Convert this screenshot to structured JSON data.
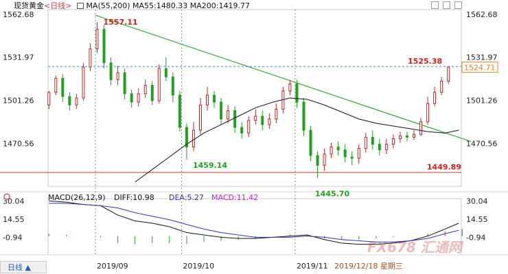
{
  "header": {
    "instrument": "现货黄金",
    "period_tag": "<日线>",
    "ma_label": "MA(55,200)",
    "ma55": "MA55:1480.33",
    "ma200": "MA200:1419.77"
  },
  "macd_header": {
    "label": "MACD(26,12,9)",
    "diff": "DIFF:10.98",
    "dea": "DEA:5.27",
    "macd": "MACD:11.42"
  },
  "period_button": "日线 ▲",
  "watermark": "FX678 汇通网",
  "watermark_date": "2019/12/18 星期三",
  "colors": {
    "up": "#cc2222",
    "down": "#22a022",
    "ma55": "#111111",
    "trend": "#3aa83a",
    "support": "#e03030",
    "dash": "#4a7fd0",
    "dif": "#111111",
    "dea": "#2a3aa8"
  },
  "chart_data": [
    {
      "type": "candlestick",
      "title": "现货黄金",
      "y_ticks": [
        1562.68,
        1531.97,
        1501.26,
        1470.56
      ],
      "ylim": [
        1440,
        1566
      ],
      "x_labels": [
        "2019/09",
        "2019/10",
        "2019/11"
      ],
      "current_price": "1524.71",
      "annotations": [
        {
          "text": "1557.11",
          "value": 1557.11,
          "candle": 30,
          "color": "#cc2222"
        },
        {
          "text": "1459.14",
          "value": 1459.14,
          "candle": 82,
          "color": "#22a022"
        },
        {
          "text": "1445.70",
          "value": 1445.7,
          "candle": 153,
          "color": "#22a022"
        },
        {
          "text": "1525.38",
          "value": 1525.38,
          "candle": 230,
          "color": "#cc2222"
        },
        {
          "text": "1449.89",
          "value": 1449.89,
          "candle": 240,
          "color": "#cc2222"
        }
      ],
      "support_level": 1449.89,
      "resistance_level": 1525.38,
      "trendline": [
        {
          "candle": 27,
          "value": 1562.0
        },
        {
          "candle": 245,
          "value": 1472.0
        }
      ],
      "series": [
        {
          "name": "MA55",
          "values": [
            [
              50,
              1443
            ],
            [
              60,
              1452
            ],
            [
              70,
              1461
            ],
            [
              80,
              1470
            ],
            [
              90,
              1478
            ],
            [
              100,
              1484
            ],
            [
              110,
              1490
            ],
            [
              120,
              1496
            ],
            [
              130,
              1500
            ],
            [
              140,
              1503
            ],
            [
              150,
              1502
            ],
            [
              160,
              1498
            ],
            [
              170,
              1493
            ],
            [
              180,
              1488
            ],
            [
              190,
              1485
            ],
            [
              200,
              1483
            ],
            [
              210,
              1481
            ],
            [
              220,
              1479
            ],
            [
              230,
              1478
            ],
            [
              238,
              1480
            ]
          ]
        }
      ],
      "candles": [
        [
          0,
          1498,
          1507,
          1508,
          1495
        ],
        [
          4,
          1507,
          1517,
          1519,
          1505
        ],
        [
          8,
          1517,
          1504,
          1520,
          1500
        ],
        [
          12,
          1504,
          1498,
          1507,
          1494
        ],
        [
          16,
          1498,
          1503,
          1506,
          1495
        ],
        [
          20,
          1503,
          1525,
          1528,
          1501
        ],
        [
          24,
          1525,
          1538,
          1542,
          1522
        ],
        [
          28,
          1538,
          1552,
          1557,
          1535
        ],
        [
          32,
          1552,
          1528,
          1555,
          1524
        ],
        [
          36,
          1528,
          1516,
          1532,
          1512
        ],
        [
          40,
          1516,
          1521,
          1526,
          1512
        ],
        [
          44,
          1521,
          1506,
          1524,
          1502
        ],
        [
          48,
          1506,
          1500,
          1509,
          1496
        ],
        [
          52,
          1500,
          1506,
          1510,
          1497
        ],
        [
          56,
          1506,
          1512,
          1516,
          1503
        ],
        [
          60,
          1512,
          1501,
          1515,
          1498
        ],
        [
          64,
          1501,
          1524,
          1527,
          1499
        ],
        [
          68,
          1524,
          1518,
          1532,
          1515
        ],
        [
          72,
          1518,
          1505,
          1521,
          1500
        ],
        [
          76,
          1505,
          1482,
          1508,
          1479
        ],
        [
          80,
          1482,
          1468,
          1485,
          1459
        ],
        [
          84,
          1468,
          1480,
          1486,
          1465
        ],
        [
          88,
          1480,
          1498,
          1503,
          1477
        ],
        [
          92,
          1498,
          1505,
          1511,
          1494
        ],
        [
          96,
          1505,
          1500,
          1508,
          1496
        ],
        [
          100,
          1500,
          1488,
          1503,
          1484
        ],
        [
          104,
          1488,
          1494,
          1498,
          1485
        ],
        [
          108,
          1494,
          1482,
          1497,
          1478
        ],
        [
          112,
          1482,
          1478,
          1486,
          1474
        ],
        [
          116,
          1478,
          1487,
          1490,
          1475
        ],
        [
          120,
          1487,
          1490,
          1495,
          1484
        ],
        [
          124,
          1490,
          1484,
          1494,
          1480
        ],
        [
          128,
          1484,
          1488,
          1492,
          1481
        ],
        [
          132,
          1488,
          1495,
          1499,
          1485
        ],
        [
          136,
          1495,
          1508,
          1511,
          1492
        ],
        [
          140,
          1508,
          1513,
          1516,
          1505
        ],
        [
          144,
          1513,
          1500,
          1516,
          1496
        ],
        [
          148,
          1500,
          1480,
          1503,
          1476
        ],
        [
          152,
          1480,
          1462,
          1483,
          1458
        ],
        [
          156,
          1462,
          1455,
          1465,
          1446
        ],
        [
          160,
          1455,
          1463,
          1467,
          1451
        ],
        [
          164,
          1463,
          1468,
          1471,
          1460
        ],
        [
          168,
          1468,
          1466,
          1472,
          1462
        ],
        [
          172,
          1466,
          1461,
          1470,
          1457
        ],
        [
          176,
          1461,
          1460,
          1465,
          1455
        ],
        [
          180,
          1460,
          1467,
          1470,
          1456
        ],
        [
          184,
          1467,
          1475,
          1478,
          1464
        ],
        [
          188,
          1475,
          1470,
          1480,
          1466
        ],
        [
          192,
          1470,
          1466,
          1474,
          1462
        ],
        [
          196,
          1466,
          1470,
          1474,
          1463
        ],
        [
          200,
          1470,
          1474,
          1477,
          1467
        ],
        [
          204,
          1474,
          1476,
          1479,
          1471
        ],
        [
          208,
          1476,
          1475,
          1479,
          1472
        ],
        [
          212,
          1475,
          1477,
          1480,
          1473
        ],
        [
          216,
          1477,
          1486,
          1489,
          1476
        ],
        [
          220,
          1486,
          1499,
          1504,
          1484
        ],
        [
          224,
          1499,
          1507,
          1511,
          1497
        ],
        [
          228,
          1507,
          1515,
          1518,
          1505
        ],
        [
          232,
          1515,
          1525,
          1525,
          1513
        ]
      ]
    },
    {
      "type": "macd",
      "title": "MACD(26,12,9)",
      "y_ticks": [
        30.04,
        14.55,
        -0.94
      ],
      "ylim": [
        -16,
        32
      ],
      "series": [
        {
          "name": "DIFF",
          "values": [
            [
              0,
              30
            ],
            [
              10,
              29
            ],
            [
              20,
              27
            ],
            [
              30,
              26
            ],
            [
              40,
              18
            ],
            [
              50,
              13
            ],
            [
              60,
              11
            ],
            [
              70,
              8
            ],
            [
              80,
              3
            ],
            [
              90,
              1
            ],
            [
              100,
              -1
            ],
            [
              110,
              -2
            ],
            [
              120,
              -2
            ],
            [
              130,
              -1
            ],
            [
              140,
              0
            ],
            [
              150,
              1
            ],
            [
              160,
              -3
            ],
            [
              170,
              -6
            ],
            [
              180,
              -7
            ],
            [
              190,
              -7
            ],
            [
              200,
              -6
            ],
            [
              210,
              -4
            ],
            [
              220,
              0
            ],
            [
              230,
              6
            ],
            [
              238,
              11
            ]
          ]
        },
        {
          "name": "DEA",
          "values": [
            [
              0,
              28
            ],
            [
              10,
              28
            ],
            [
              20,
              27
            ],
            [
              30,
              26
            ],
            [
              40,
              24
            ],
            [
              50,
              20
            ],
            [
              60,
              17
            ],
            [
              70,
              14
            ],
            [
              80,
              10
            ],
            [
              90,
              6
            ],
            [
              100,
              3
            ],
            [
              110,
              1
            ],
            [
              120,
              -1
            ],
            [
              130,
              -1
            ],
            [
              140,
              -1
            ],
            [
              150,
              0
            ],
            [
              160,
              -1
            ],
            [
              170,
              -3
            ],
            [
              180,
              -4
            ],
            [
              190,
              -5
            ],
            [
              200,
              -5
            ],
            [
              210,
              -4
            ],
            [
              220,
              -2
            ],
            [
              230,
              2
            ],
            [
              238,
              5
            ]
          ]
        }
      ],
      "histogram": [
        2,
        1,
        0,
        -1,
        -6,
        -7,
        -6,
        -6,
        -7,
        -5,
        -4,
        -3,
        -2,
        0,
        1,
        1,
        -2,
        -3,
        -3,
        -2,
        -1,
        0,
        2,
        4,
        6
      ]
    }
  ]
}
